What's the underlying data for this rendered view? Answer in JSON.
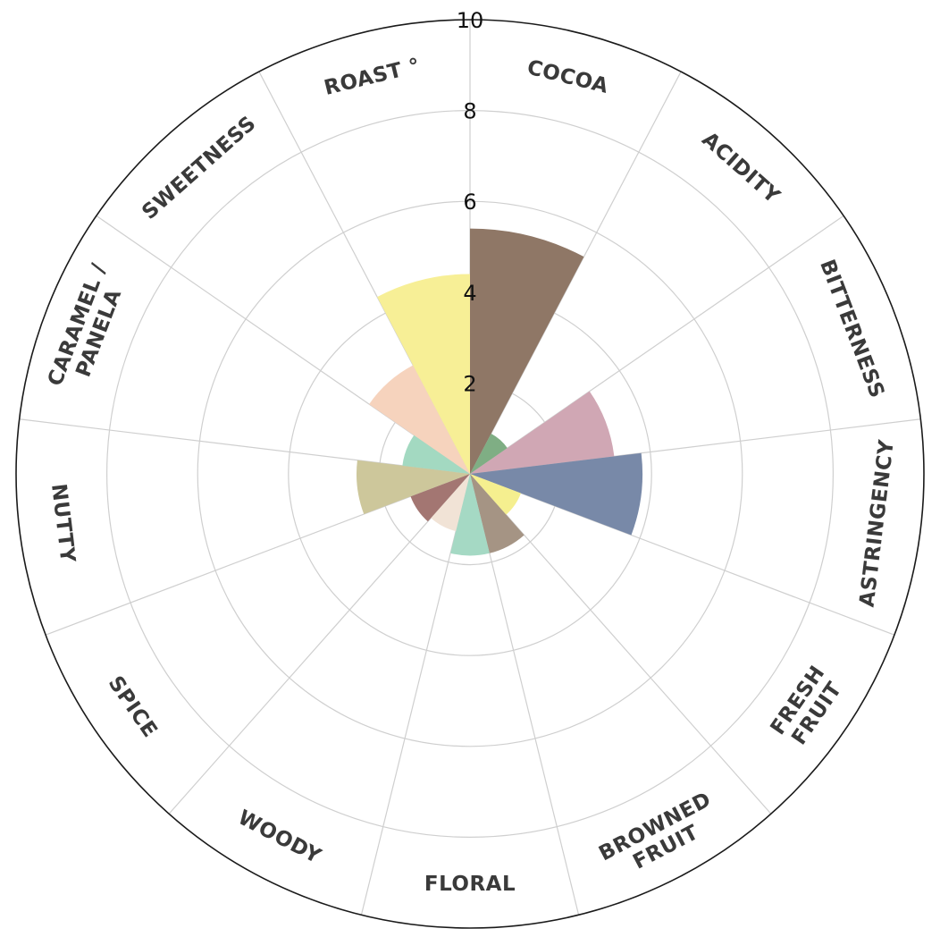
{
  "chart_data": {
    "type": "polar-bar",
    "rmax": 10,
    "rticks": [
      2,
      4,
      6,
      8,
      10
    ],
    "grid": true,
    "categories": [
      "COCOA",
      "ACIDITY",
      "BITTERNESS",
      "ASTRINGENCY",
      "FRESH\nFRUIT",
      "BROWNED\nFRUIT",
      "FLORAL",
      "WOODY",
      "SPICE",
      "NUTTY",
      "CARAMEL /\nPANELA",
      "SWEETNESS",
      "ROAST °"
    ],
    "values": [
      5.4,
      1.0,
      3.2,
      3.8,
      1.2,
      1.8,
      1.8,
      1.3,
      1.4,
      2.5,
      1.5,
      2.7,
      4.4
    ],
    "colors": [
      "#8f7766",
      "#7fae84",
      "#d0a7b4",
      "#7889a8",
      "#f5ef8f",
      "#a59484",
      "#a5d9c4",
      "#f1e3d6",
      "#a37672",
      "#cdc79b",
      "#a3d9c1",
      "#f6d3bd",
      "#f7ef96"
    ]
  }
}
